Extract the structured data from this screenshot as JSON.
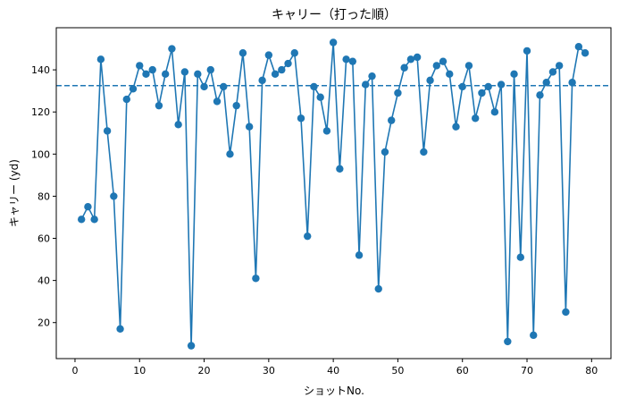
{
  "chart_data": {
    "type": "line",
    "title": "キャリー（打った順）",
    "xlabel": "ショットNo.",
    "ylabel": "キャリー (yd)",
    "xlim": [
      -2.9,
      83.0
    ],
    "ylim": [
      2.9,
      160.0
    ],
    "xticks": [
      0,
      10,
      20,
      30,
      40,
      50,
      60,
      70,
      80
    ],
    "yticks": [
      20,
      40,
      60,
      80,
      100,
      120,
      140
    ],
    "grid": false,
    "legend": "none",
    "series": [
      {
        "color": "#1f77b4",
        "marker": "circle",
        "x": [
          1,
          2,
          3,
          4,
          5,
          6,
          7,
          8,
          9,
          10,
          11,
          12,
          13,
          14,
          15,
          16,
          17,
          18,
          19,
          20,
          21,
          22,
          23,
          24,
          25,
          26,
          27,
          28,
          29,
          30,
          31,
          32,
          33,
          34,
          35,
          36,
          37,
          38,
          39,
          40,
          41,
          42,
          43,
          44,
          45,
          46,
          47,
          48,
          49,
          50,
          51,
          52,
          53,
          54,
          55,
          56,
          57,
          58,
          59,
          60,
          61,
          62,
          63,
          64,
          65,
          66,
          67,
          68,
          69,
          70,
          71,
          72,
          73,
          74,
          75,
          76,
          77,
          78,
          79
        ],
        "y": [
          69,
          75,
          69,
          145,
          111,
          80,
          17,
          126,
          131,
          142,
          138,
          140,
          123,
          138,
          150,
          114,
          139,
          9,
          138,
          132,
          140,
          125,
          132,
          100,
          123,
          148,
          113,
          41,
          135,
          147,
          138,
          140,
          143,
          148,
          117,
          61,
          132,
          127,
          111,
          153,
          93,
          145,
          144,
          52,
          133,
          137,
          36,
          101,
          116,
          129,
          141,
          145,
          146,
          101,
          135,
          142,
          144,
          138,
          113,
          132,
          142,
          117,
          129,
          132,
          120,
          133,
          11,
          138,
          51,
          149,
          14,
          128,
          134,
          139,
          142,
          25,
          134,
          151,
          148
        ]
      }
    ],
    "reference_line": {
      "orientation": "horizontal",
      "y": 132.5,
      "style": "dashed",
      "color": "#1f77b4"
    }
  }
}
